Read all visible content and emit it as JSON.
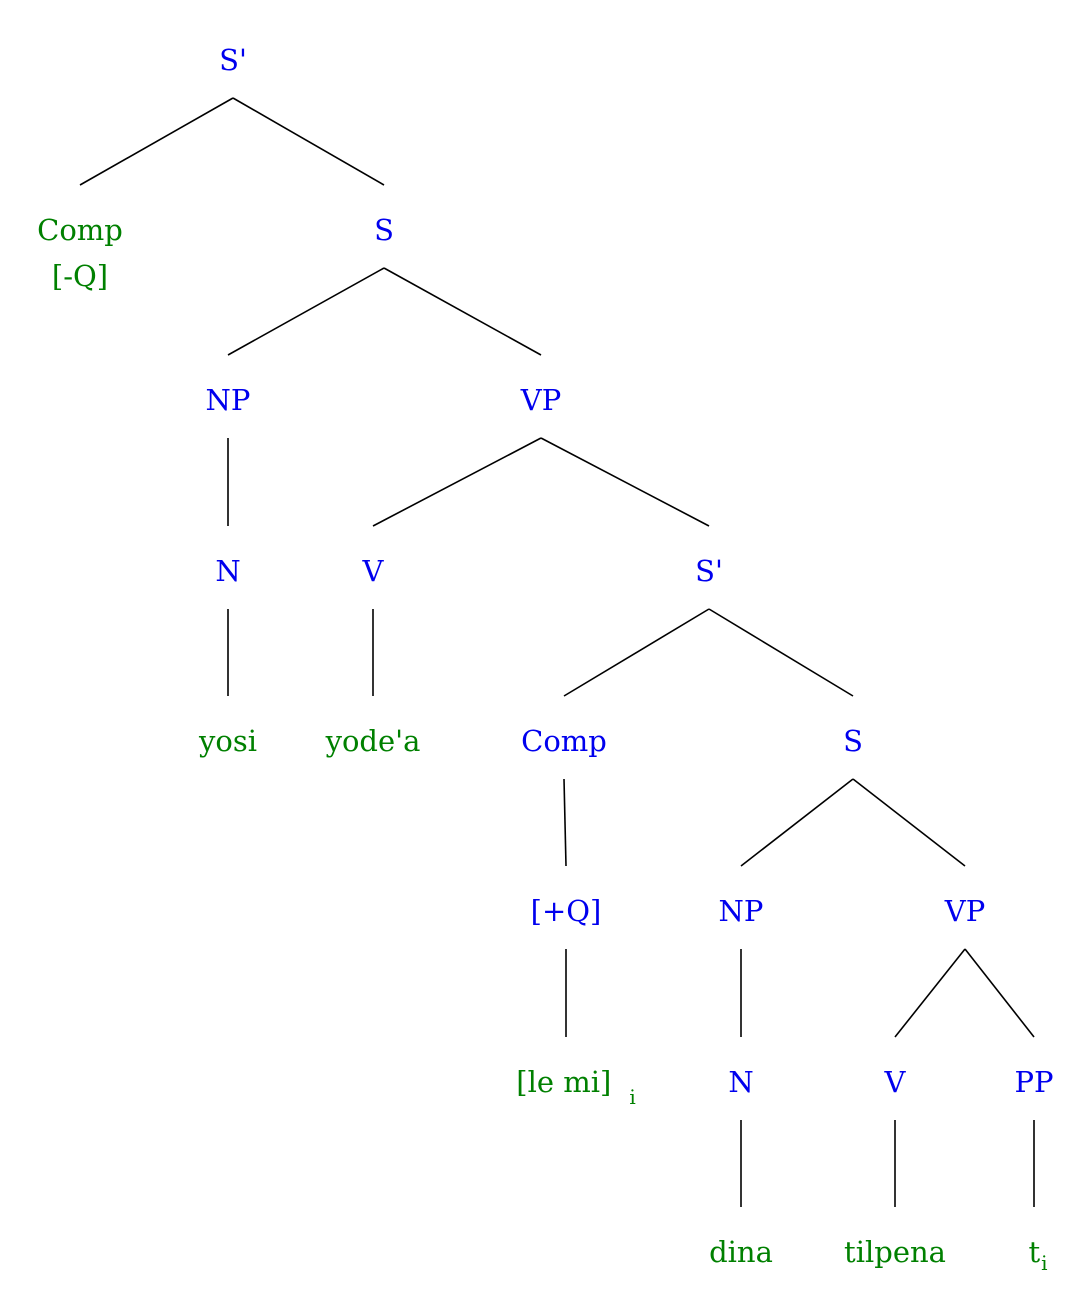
{
  "colors": {
    "category": "#0000ee",
    "terminal": "#008000",
    "edge": "#000000"
  },
  "tree": {
    "nodes": [
      {
        "id": "root",
        "text": "S'",
        "color": "category"
      },
      {
        "id": "comp1",
        "text": "Comp",
        "color": "terminal"
      },
      {
        "id": "q1",
        "text": "[-Q]",
        "color": "terminal"
      },
      {
        "id": "s1",
        "text": "S",
        "color": "category"
      },
      {
        "id": "np1",
        "text": "NP",
        "color": "category"
      },
      {
        "id": "vp1",
        "text": "VP",
        "color": "category"
      },
      {
        "id": "n1",
        "text": "N",
        "color": "category"
      },
      {
        "id": "v1",
        "text": "V",
        "color": "category"
      },
      {
        "id": "sbar2",
        "text": "S'",
        "color": "category"
      },
      {
        "id": "yosi",
        "text": "yosi",
        "color": "terminal"
      },
      {
        "id": "yodea",
        "text": "yode'a",
        "color": "terminal"
      },
      {
        "id": "comp2",
        "text": "Comp",
        "color": "category"
      },
      {
        "id": "s2",
        "text": "S",
        "color": "category"
      },
      {
        "id": "q2",
        "text": "[+Q]",
        "color": "category"
      },
      {
        "id": "np2",
        "text": "NP",
        "color": "category"
      },
      {
        "id": "vp2",
        "text": "VP",
        "color": "category"
      },
      {
        "id": "lemi",
        "text": "[le  mi]",
        "sub": "i",
        "color": "terminal"
      },
      {
        "id": "n2",
        "text": "N",
        "color": "category"
      },
      {
        "id": "v2",
        "text": "V",
        "color": "category"
      },
      {
        "id": "pp",
        "text": "PP",
        "color": "category"
      },
      {
        "id": "dina",
        "text": "dina",
        "color": "terminal"
      },
      {
        "id": "tilpena",
        "text": "tilpena",
        "color": "terminal"
      },
      {
        "id": "trace",
        "text": "t",
        "sub": "i",
        "color": "terminal"
      }
    ],
    "edges": [
      [
        "root",
        "comp1"
      ],
      [
        "root",
        "s1"
      ],
      [
        "s1",
        "np1"
      ],
      [
        "s1",
        "vp1"
      ],
      [
        "np1",
        "n1"
      ],
      [
        "n1",
        "yosi"
      ],
      [
        "vp1",
        "v1"
      ],
      [
        "vp1",
        "sbar2"
      ],
      [
        "v1",
        "yodea"
      ],
      [
        "sbar2",
        "comp2"
      ],
      [
        "sbar2",
        "s2"
      ],
      [
        "comp2",
        "q2"
      ],
      [
        "q2",
        "lemi"
      ],
      [
        "s2",
        "np2"
      ],
      [
        "s2",
        "vp2"
      ],
      [
        "np2",
        "n2"
      ],
      [
        "n2",
        "dina"
      ],
      [
        "vp2",
        "v2"
      ],
      [
        "vp2",
        "pp"
      ],
      [
        "v2",
        "tilpena"
      ],
      [
        "pp",
        "trace"
      ]
    ]
  }
}
